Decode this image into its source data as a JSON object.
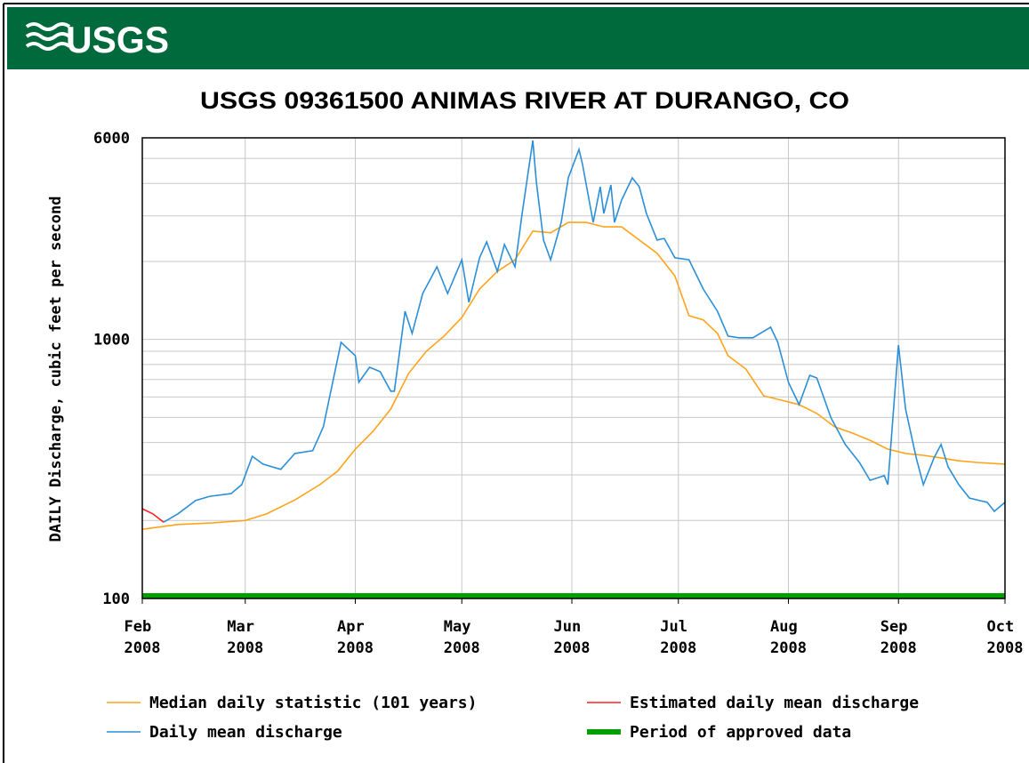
{
  "header": {
    "logo": "USGS"
  },
  "chart_data": {
    "type": "line",
    "title": "USGS 09361500 ANIMAS RIVER AT DURANGO, CO",
    "y_label": "DAILY Discharge, cubic feet per second",
    "yscale": "log",
    "ylim": [
      100,
      6000
    ],
    "yticks": [
      100,
      1000,
      6000
    ],
    "minor_yticks": [
      200,
      300,
      400,
      500,
      600,
      700,
      800,
      900,
      2000,
      3000,
      4000,
      5000
    ],
    "xlim": [
      0,
      243
    ],
    "xticks": [
      {
        "value": 0,
        "label": "Feb 2008"
      },
      {
        "value": 29,
        "label": "Mar 2008"
      },
      {
        "value": 60,
        "label": "Apr 2008"
      },
      {
        "value": 90,
        "label": "May 2008"
      },
      {
        "value": 121,
        "label": "Jun 2008"
      },
      {
        "value": 151,
        "label": "Jul 2008"
      },
      {
        "value": 182,
        "label": "Aug 2008"
      },
      {
        "value": 213,
        "label": "Sep 2008"
      },
      {
        "value": 243,
        "label": "Oct 2008"
      }
    ],
    "grid": true,
    "series": [
      {
        "name": "Median daily statistic (101 years)",
        "color": "#ffa31a",
        "x": [
          0,
          10,
          20,
          29,
          35,
          43,
          50,
          55,
          60,
          65,
          70,
          75,
          80,
          85,
          90,
          95,
          100,
          105,
          110,
          115,
          120,
          125,
          130,
          135,
          140,
          145,
          150,
          154,
          158,
          162,
          165,
          170,
          175,
          180,
          185,
          190,
          195,
          200,
          205,
          210,
          215,
          220,
          225,
          230,
          235,
          243
        ],
        "values": [
          185,
          193,
          196,
          200,
          212,
          240,
          275,
          310,
          377,
          442,
          539,
          739,
          900,
          1030,
          1215,
          1565,
          1830,
          2030,
          2620,
          2580,
          2830,
          2830,
          2720,
          2720,
          2420,
          2150,
          1760,
          1235,
          1190,
          1055,
          865,
          769,
          606,
          583,
          560,
          518,
          460,
          435,
          408,
          377,
          363,
          357,
          349,
          340,
          335,
          330
        ]
      },
      {
        "name": "Estimated daily mean discharge",
        "color": "#ff2020",
        "x": [
          0,
          3,
          6
        ],
        "values": [
          222,
          212,
          197
        ]
      },
      {
        "name": "Daily mean discharge",
        "color": "#2a8fd8",
        "x": [
          6,
          10,
          15,
          19,
          25,
          28,
          31,
          34,
          39,
          43,
          48,
          51,
          56,
          60,
          61,
          64,
          67,
          70,
          71,
          74,
          76,
          79,
          83,
          85,
          86,
          90,
          92,
          95,
          97,
          100,
          102,
          105,
          107,
          110,
          111,
          113,
          115,
          118,
          120,
          123,
          124,
          127,
          129,
          130,
          132,
          133,
          135,
          138,
          140,
          142,
          145,
          147,
          150,
          154,
          158,
          162,
          165,
          168,
          172,
          177,
          179,
          182,
          185,
          188,
          190,
          194,
          198,
          202,
          205,
          209,
          210,
          213,
          215,
          218,
          220,
          223,
          225,
          227,
          230,
          233,
          238,
          240,
          243
        ],
        "values": [
          197,
          212,
          239,
          248,
          254,
          275,
          354,
          330,
          315,
          363,
          372,
          460,
          975,
          865,
          683,
          781,
          751,
          631,
          631,
          1285,
          1055,
          1505,
          1907,
          1629,
          1505,
          2030,
          1390,
          2065,
          2380,
          1830,
          2325,
          1907,
          3065,
          5860,
          4040,
          2420,
          2030,
          2830,
          4205,
          5415,
          4735,
          2830,
          3885,
          3065,
          3950,
          2830,
          3450,
          4205,
          3885,
          3065,
          2420,
          2455,
          2065,
          2030,
          1565,
          1285,
          1030,
          1015,
          1015,
          1115,
          975,
          683,
          560,
          727,
          710,
          498,
          393,
          335,
          286,
          298,
          275,
          951,
          539,
          349,
          275,
          349,
          393,
          322,
          275,
          244,
          235,
          217,
          235
        ]
      },
      {
        "name": "Period of approved data",
        "color": "#00a000",
        "kind": "band",
        "x": [
          0,
          243
        ],
        "values": [
          100,
          100
        ]
      }
    ]
  }
}
